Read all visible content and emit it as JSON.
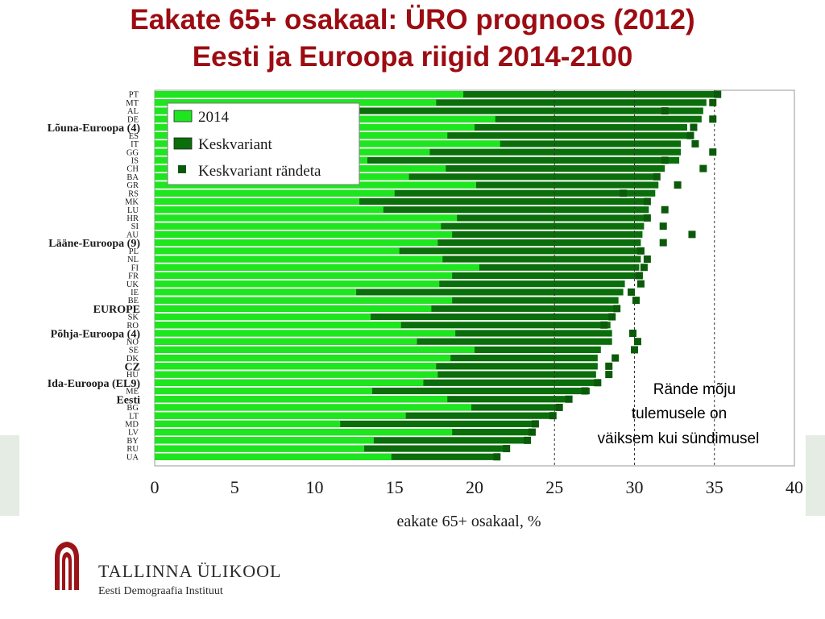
{
  "header": {
    "title_line1": "Eakate 65+ osakaal: ÜRO prognoos (2012)",
    "title_line2": "Eesti ja Euroopa riigid 2014-2100"
  },
  "logo": {
    "name": "TALLINNA ÜLIKOOL",
    "subtitle": "Eesti Demograafia Instituut"
  },
  "annotation": {
    "lines": [
      "Rände mõju",
      "tulemusele on",
      "väiksem kui sündimusel"
    ]
  },
  "colors": {
    "base_2014": "#1ee61e",
    "keskvariant": "#0a6e0a",
    "marker": "#0a5a0a",
    "title": "#9c0c12",
    "dashed_line": "#333333"
  },
  "chart_data": {
    "type": "bar",
    "orientation": "horizontal",
    "xlabel": "eakate 65+ osakaal, %",
    "xlim": [
      0,
      40
    ],
    "xticks": [
      0,
      5,
      10,
      15,
      20,
      25,
      30,
      35,
      40
    ],
    "reference_lines": [
      25,
      30,
      35
    ],
    "legend": {
      "placement": "top-left",
      "entries": [
        "2014",
        "Keskvariant",
        "Keskvariant rändeta"
      ]
    },
    "categories": [
      "PT",
      "MT",
      "AL",
      "DE",
      "Lõuna-Euroopa (4)",
      "ES",
      "IT",
      "GG",
      "IS",
      "CH",
      "BA",
      "GR",
      "RS",
      "MK",
      "LU",
      "HR",
      "SI",
      "AU",
      "Lääne-Euroopa (9)",
      "PL",
      "NL",
      "FI",
      "FR",
      "UK",
      "IE",
      "BE",
      "EUROPE",
      "SK",
      "RO",
      "Põhja-Euroopa (4)",
      "NO",
      "SE",
      "DK",
      "CZ",
      "HU",
      "Ida-Euroopa (EL9)",
      "ME",
      "Eesti",
      "BG",
      "LT",
      "MD",
      "LV",
      "BY",
      "RU",
      "UA"
    ],
    "group_labels": [
      "Lõuna-Euroopa (4)",
      "Lääne-Euroopa (9)",
      "EUROPE",
      "Põhja-Euroopa (4)",
      "CZ",
      "Ida-Euroopa (EL9)",
      "Eesti"
    ],
    "series": [
      {
        "name": "2014",
        "values": [
          19.3,
          17.6,
          12.0,
          21.3,
          20.0,
          18.3,
          21.6,
          17.2,
          13.3,
          18.2,
          15.9,
          20.1,
          15.0,
          12.8,
          14.3,
          18.9,
          17.9,
          18.6,
          17.7,
          15.3,
          18.0,
          20.3,
          18.6,
          17.8,
          12.6,
          18.6,
          17.3,
          13.5,
          15.4,
          18.8,
          16.4,
          20.0,
          18.5,
          17.6,
          17.7,
          16.8,
          13.6,
          18.3,
          19.8,
          15.7,
          11.6,
          18.6,
          13.7,
          13.1,
          14.8
        ]
      },
      {
        "name": "Keskvariant",
        "values": [
          35.3,
          34.5,
          34.3,
          34.2,
          33.3,
          33.3,
          32.9,
          32.9,
          32.8,
          31.9,
          31.3,
          31.5,
          31.3,
          30.9,
          30.9,
          30.6,
          30.6,
          30.5,
          30.4,
          30.4,
          30.4,
          30.3,
          30.2,
          29.4,
          29.3,
          29.0,
          28.8,
          28.6,
          28.5,
          28.6,
          28.6,
          27.9,
          27.7,
          27.7,
          27.6,
          27.5,
          27.2,
          25.8,
          25.2,
          24.8,
          23.7,
          23.7,
          23.4,
          21.9,
          21.4
        ]
      },
      {
        "name": "Keskvariant rändeta",
        "values": [
          35.2,
          34.9,
          31.9,
          34.9,
          33.7,
          33.5,
          33.8,
          34.9,
          31.9,
          34.3,
          31.4,
          32.7,
          29.3,
          30.8,
          31.9,
          30.8,
          31.8,
          33.6,
          31.8,
          30.4,
          30.8,
          30.6,
          30.3,
          30.4,
          29.8,
          30.1,
          28.9,
          28.6,
          28.1,
          29.9,
          30.2,
          30.0,
          28.8,
          28.4,
          28.4,
          27.7,
          26.9,
          25.9,
          25.3,
          24.9,
          23.8,
          23.6,
          23.3,
          22.0,
          21.4
        ]
      }
    ]
  }
}
